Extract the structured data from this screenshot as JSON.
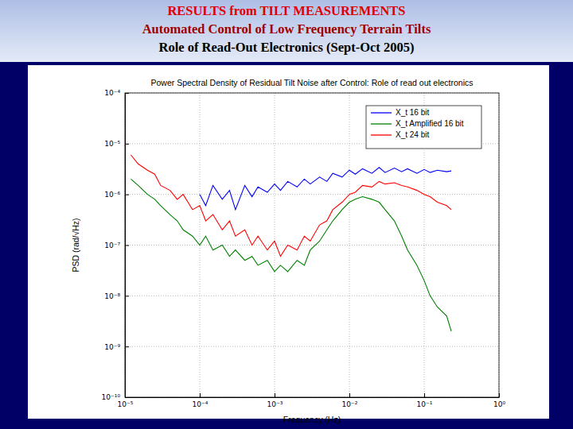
{
  "slide_title": [
    "RESULTS from TILT MEASUREMENTS",
    "Automated Control of Low Frequency Terrain Tilts",
    "Role of Read-Out Electronics (Sept-Oct 2005)"
  ],
  "chart_data": {
    "type": "line",
    "title": "Power Spectral Density of Residual Tilt Noise after Control: Role of read out electronics",
    "x_label": "Frequency (Hz)",
    "y_label": "PSD (rad/√Hz)",
    "log": true,
    "grid": true,
    "legend": "upper right",
    "xlim": [
      1e-05,
      1
    ],
    "ylim": [
      1e-10,
      0.0001
    ],
    "xticks": [
      {
        "value": 1e-05,
        "label": "10⁻⁵"
      },
      {
        "value": 0.0001,
        "label": "10⁻⁴"
      },
      {
        "value": 0.001,
        "label": "10⁻³"
      },
      {
        "value": 0.01,
        "label": "10⁻²"
      },
      {
        "value": 0.1,
        "label": "10⁻¹"
      },
      {
        "value": 1,
        "label": "10⁰"
      }
    ],
    "yticks": [
      {
        "value": 1e-10,
        "label": "10⁻¹⁰"
      },
      {
        "value": 1e-09,
        "label": "10⁻⁹"
      },
      {
        "value": 1e-08,
        "label": "10⁻⁸"
      },
      {
        "value": 1e-07,
        "label": "10⁻⁷"
      },
      {
        "value": 1e-06,
        "label": "10⁻⁶"
      },
      {
        "value": 1e-05,
        "label": "10⁻⁵"
      },
      {
        "value": 0.0001,
        "label": "10⁻⁴"
      }
    ],
    "x": [
      1.2e-05,
      1.5e-05,
      2e-05,
      2.5e-05,
      3e-05,
      4e-05,
      5e-05,
      6e-05,
      8e-05,
      0.0001,
      0.00012,
      0.00015,
      0.0002,
      0.00025,
      0.0003,
      0.0004,
      0.0005,
      0.0006,
      0.0008,
      0.001,
      0.0012,
      0.0015,
      0.002,
      0.0025,
      0.003,
      0.004,
      0.005,
      0.006,
      0.008,
      0.01,
      0.012,
      0.015,
      0.02,
      0.025,
      0.03,
      0.04,
      0.05,
      0.06,
      0.08,
      0.1,
      0.12,
      0.15,
      0.2,
      0.23
    ],
    "series": [
      {
        "name": "X_t 16 bit",
        "color": "#0000ff",
        "values": [
          null,
          null,
          null,
          null,
          null,
          null,
          null,
          null,
          null,
          1e-06,
          6e-07,
          1.5e-06,
          8e-07,
          1.2e-06,
          5e-07,
          1.5e-06,
          9e-07,
          1.4e-06,
          1.1e-06,
          1.6e-06,
          1.2e-06,
          1.8e-06,
          1.4e-06,
          2e-06,
          1.6e-06,
          2.2e-06,
          1.8e-06,
          2.6e-06,
          2.2e-06,
          3e-06,
          2.5e-06,
          3.2e-06,
          2.6e-06,
          3.4e-06,
          2.7e-06,
          3.3e-06,
          2.8e-06,
          3.2e-06,
          2.6e-06,
          3.1e-06,
          2.7e-06,
          3e-06,
          2.8e-06,
          2.9e-06
        ]
      },
      {
        "name": "X_t Amplified 16 bit",
        "color": "#008000",
        "values": [
          2e-06,
          1.5e-06,
          1e-06,
          8e-07,
          6e-07,
          4e-07,
          3e-07,
          2e-07,
          1.5e-07,
          1e-07,
          1.5e-07,
          8e-08,
          1e-07,
          6e-08,
          8e-08,
          5e-08,
          6e-08,
          4e-08,
          5e-08,
          3e-08,
          4e-08,
          3e-08,
          5e-08,
          4e-08,
          8e-08,
          1.2e-07,
          2e-07,
          3e-07,
          5e-07,
          7e-07,
          8e-07,
          9e-07,
          8e-07,
          7e-07,
          5e-07,
          3e-07,
          1.5e-07,
          8e-08,
          4e-08,
          2e-08,
          1e-08,
          6e-09,
          4e-09,
          2e-09
        ]
      },
      {
        "name": "X_t 24 bit",
        "color": "#ff0000",
        "values": [
          6e-06,
          4e-06,
          3e-06,
          2.5e-06,
          1.5e-06,
          1.2e-06,
          8e-07,
          1e-06,
          5e-07,
          6e-07,
          3e-07,
          4e-07,
          2e-07,
          3e-07,
          1.5e-07,
          2e-07,
          1e-07,
          1.5e-07,
          8e-08,
          1.2e-07,
          6e-08,
          1e-07,
          8e-08,
          1.5e-07,
          1.2e-07,
          2.5e-07,
          3e-07,
          5e-07,
          7e-07,
          1e-06,
          1.1e-06,
          1.5e-06,
          1.4e-06,
          1.8e-06,
          1.6e-06,
          1.7e-06,
          1.5e-06,
          1.4e-06,
          1.2e-06,
          1e-06,
          9e-07,
          7e-07,
          6e-07,
          5e-07
        ]
      }
    ]
  }
}
